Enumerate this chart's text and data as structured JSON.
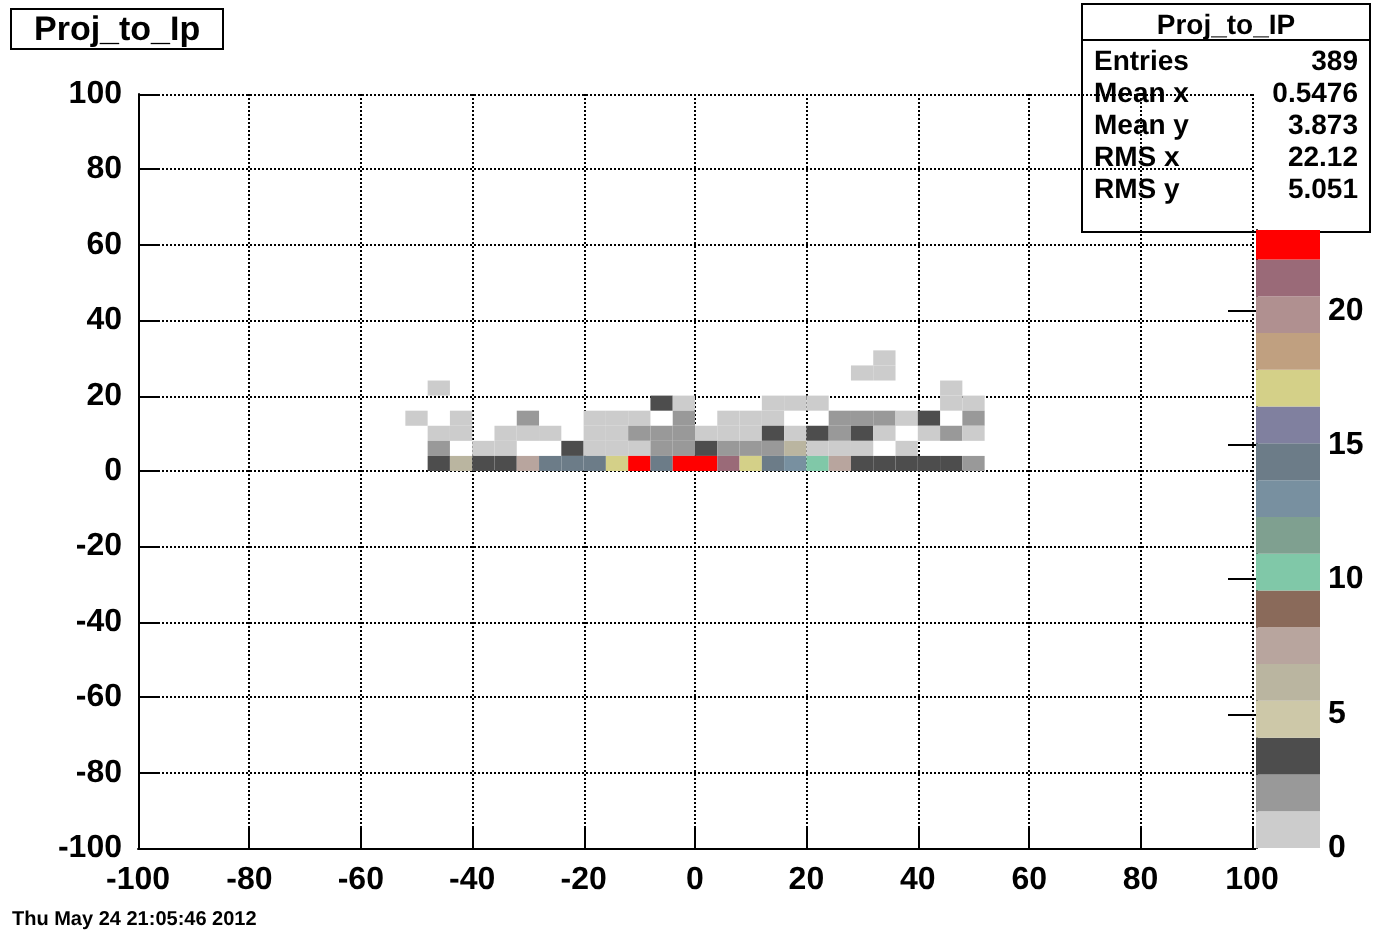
{
  "chart_data": {
    "type": "heatmap",
    "title": "Proj_to_Ip",
    "annotations": [
      "Thu May 24 21:05:46 2012",
      "Proj_to_IP",
      "Entries 389",
      "Mean x 0.5476",
      "Mean y 3.873",
      "RMS x 22.12",
      "RMS y 5.051"
    ],
    "x": [
      -50,
      -46,
      -42,
      -38,
      -34,
      -30,
      -26,
      -22,
      -18,
      -14,
      -10,
      -6,
      -2,
      2,
      6,
      10,
      14,
      18,
      22,
      26,
      30,
      34,
      38,
      42,
      46,
      50
    ],
    "y": [
      30,
      26,
      22,
      18,
      14,
      10,
      6,
      2
    ],
    "cells": [
      [
        null,
        null,
        null,
        null,
        null,
        null,
        null,
        null,
        null,
        null,
        null,
        null,
        null,
        null,
        null,
        null,
        null,
        null,
        null,
        null,
        null,
        1,
        null,
        null,
        null,
        null
      ],
      [
        null,
        null,
        null,
        null,
        null,
        null,
        null,
        null,
        null,
        null,
        null,
        null,
        null,
        null,
        null,
        null,
        null,
        null,
        null,
        null,
        1,
        1,
        null,
        null,
        null,
        null
      ],
      [
        null,
        1,
        null,
        null,
        null,
        null,
        null,
        null,
        null,
        null,
        null,
        null,
        null,
        null,
        null,
        null,
        null,
        null,
        null,
        null,
        null,
        null,
        null,
        null,
        1,
        null
      ],
      [
        null,
        null,
        null,
        null,
        null,
        null,
        null,
        null,
        null,
        null,
        null,
        3,
        1,
        null,
        null,
        null,
        1,
        1,
        1,
        null,
        null,
        null,
        null,
        null,
        1,
        1
      ],
      [
        1,
        null,
        1,
        null,
        null,
        2,
        null,
        null,
        1,
        1,
        1,
        null,
        2,
        null,
        1,
        1,
        1,
        null,
        null,
        2,
        2,
        2,
        1,
        3,
        null,
        2
      ],
      [
        null,
        1,
        1,
        null,
        1,
        1,
        1,
        null,
        1,
        1,
        2,
        2,
        2,
        1,
        1,
        1,
        3,
        1,
        3,
        2,
        3,
        1,
        null,
        1,
        2,
        1
      ],
      [
        null,
        2,
        null,
        1,
        1,
        null,
        null,
        3,
        1,
        1,
        1,
        2,
        2,
        3,
        2,
        2,
        2,
        6,
        1,
        1,
        1,
        null,
        1,
        null,
        null,
        null
      ],
      [
        null,
        3,
        6,
        3,
        3,
        8,
        14,
        14,
        14,
        17,
        22,
        14,
        23,
        23,
        21,
        17,
        14,
        13,
        10,
        8,
        3,
        3,
        3,
        3,
        3,
        2
      ]
    ],
    "xlim": [
      -100,
      100
    ],
    "xticks": [
      -100,
      -80,
      -60,
      -40,
      -20,
      0,
      20,
      40,
      60,
      80,
      100
    ],
    "ylim": [
      -100,
      100
    ],
    "yticks": [
      -100,
      -80,
      -60,
      -40,
      -20,
      0,
      20,
      40,
      60,
      80,
      100
    ],
    "clim": [
      0,
      23
    ],
    "cticks": [
      0,
      5,
      10,
      15,
      20
    ],
    "grid": true
  }
}
